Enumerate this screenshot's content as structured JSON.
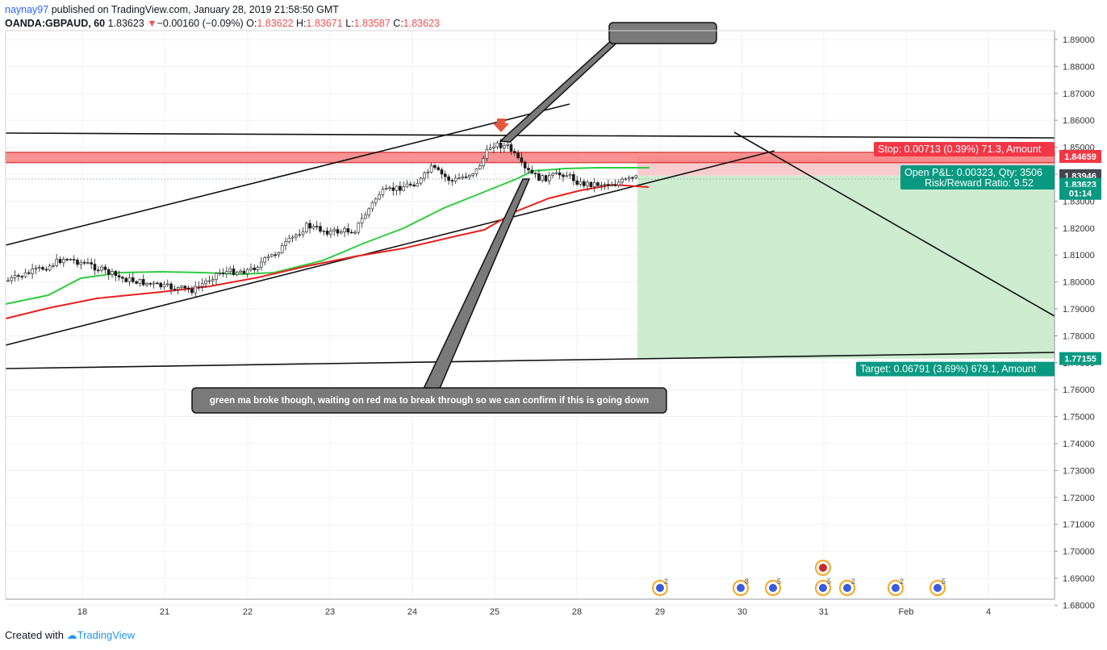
{
  "header": {
    "user": "naynay97",
    "published": "published on TradingView.com, January 28, 2019 21:58:50 GMT",
    "symbol": "OANDA:GBPAUD, 60",
    "last": "1.83623",
    "change_arrow": "▼",
    "change": "−0.00160 (−0.09%)",
    "o_label": "O:",
    "o_val": "1.83622",
    "h_label": "H:",
    "h_val": "1.83671",
    "l_label": "L:",
    "l_val": "1.83587",
    "c_label": "C:",
    "c_val": "1.83623"
  },
  "footer": {
    "created": "Created with",
    "brand": "TradingView"
  },
  "colors": {
    "up_candle": "#ffffff",
    "down_candle": "#1a1a1a",
    "ma_fast": "#2ecc40",
    "ma_slow": "#e8201e",
    "stop": "#f23645",
    "target": "#089981",
    "grid": "#e8e8e8"
  },
  "chart_data": {
    "type": "candlestick",
    "ylim": [
      1.678,
      1.893
    ],
    "y_ticks": [
      "1.89000",
      "1.88000",
      "1.87000",
      "1.86000",
      "1.85000",
      "1.84000",
      "1.83000",
      "1.82000",
      "1.81000",
      "1.80000",
      "1.79000",
      "1.78000",
      "1.77000",
      "1.76000",
      "1.75000",
      "1.74000",
      "1.73000",
      "1.72000",
      "1.71000",
      "1.70000",
      "1.69000",
      "1.68000"
    ],
    "x_ticks": [
      "18",
      "21",
      "22",
      "23",
      "24",
      "25",
      "28",
      "29",
      "30",
      "31",
      "Feb",
      "4"
    ],
    "price_labels": [
      {
        "text": "1.84659",
        "value": 1.84659,
        "color": "#f23645"
      },
      {
        "text": "1.83946",
        "value": 1.83946,
        "color": "#434651"
      },
      {
        "text": "1.83623",
        "value": 1.83623,
        "color": "#089981"
      },
      {
        "text": "01:14",
        "value": 1.8329,
        "color": "#089981"
      },
      {
        "text": "1.77155",
        "value": 1.77155,
        "color": "#089981"
      }
    ],
    "position": {
      "stop_label": "Stop: 0.00713 (0.39%) 71.3, Amount",
      "pnl_label": "Open P&L: 0.00323, Qty: 3506",
      "rr_label": "Risk/Reward Ratio: 9.52",
      "target_label": "Target: 0.06791 (3.69%) 679.1, Amount",
      "entry": 1.83946,
      "stop": 1.84659,
      "target": 1.77155
    },
    "resistance_zone": [
      1.8443,
      1.8481
    ],
    "annotation": "green ma broke though, waiting on red ma to break through so we can confirm if this is going down",
    "event_badges": [
      "2",
      "8",
      "5",
      "5",
      "2",
      "2",
      "5"
    ]
  }
}
